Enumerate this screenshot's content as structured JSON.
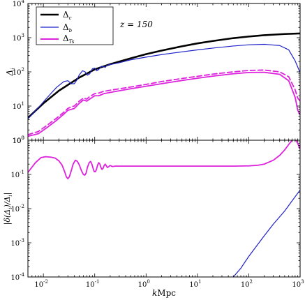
{
  "chart_data": [
    {
      "type": "line",
      "xscale": "log",
      "yscale": "log",
      "xlim": [
        0.005,
        1000
      ],
      "ylim": [
        1,
        10000
      ],
      "ylabel": "Δ_i",
      "yticks": [
        {
          "m": "10",
          "e": "0",
          "v": 1
        },
        {
          "m": "10",
          "e": "1",
          "v": 10
        },
        {
          "m": "10",
          "e": "2",
          "v": 100
        },
        {
          "m": "10",
          "e": "3",
          "v": 1000
        },
        {
          "m": "10",
          "e": "4",
          "v": 10000
        }
      ],
      "annotation": "z = 150",
      "legend": {
        "position": "top-left",
        "entries": [
          {
            "label": "Δ_c",
            "color": "#000000",
            "style": "solid-thick"
          },
          {
            "label": "Δ_b",
            "color": "#1f22c9",
            "style": "solid"
          },
          {
            "label": "Δ_Ts",
            "color": "#dd22dd",
            "style": "solid-thick"
          }
        ]
      },
      "series": [
        {
          "name": "Δ_c",
          "color": "#000000",
          "width": 2.6,
          "dash": "",
          "points": [
            [
              0.005,
              4.5
            ],
            [
              0.01,
              12
            ],
            [
              0.02,
              28
            ],
            [
              0.05,
              68
            ],
            [
              0.1,
              118
            ],
            [
              0.2,
              168
            ],
            [
              0.5,
              248
            ],
            [
              1,
              330
            ],
            [
              2,
              420
            ],
            [
              5,
              560
            ],
            [
              10,
              680
            ],
            [
              20,
              800
            ],
            [
              50,
              970
            ],
            [
              100,
              1080
            ],
            [
              200,
              1180
            ],
            [
              500,
              1280
            ],
            [
              1000,
              1330
            ]
          ]
        },
        {
          "name": "Δ_b",
          "color": "#1f22c9",
          "width": 1.2,
          "dash": "",
          "points": [
            [
              0.005,
              4.2
            ],
            [
              0.008,
              9
            ],
            [
              0.012,
              18
            ],
            [
              0.018,
              35
            ],
            [
              0.025,
              52
            ],
            [
              0.03,
              55
            ],
            [
              0.035,
              45
            ],
            [
              0.04,
              45
            ],
            [
              0.045,
              58
            ],
            [
              0.05,
              82
            ],
            [
              0.058,
              108
            ],
            [
              0.065,
              100
            ],
            [
              0.072,
              80
            ],
            [
              0.08,
              88
            ],
            [
              0.09,
              123
            ],
            [
              0.1,
              128
            ],
            [
              0.11,
              107
            ],
            [
              0.12,
              118
            ],
            [
              0.135,
              145
            ],
            [
              0.15,
              142
            ],
            [
              0.16,
              135
            ],
            [
              0.17,
              152
            ],
            [
              0.19,
              163
            ],
            [
              0.22,
              168
            ],
            [
              0.3,
              185
            ],
            [
              0.5,
              225
            ],
            [
              1,
              270
            ],
            [
              2,
              320
            ],
            [
              5,
              385
            ],
            [
              10,
              440
            ],
            [
              20,
              495
            ],
            [
              50,
              570
            ],
            [
              100,
              620
            ],
            [
              200,
              640
            ],
            [
              400,
              590
            ],
            [
              600,
              440
            ],
            [
              800,
              210
            ],
            [
              1000,
              95
            ]
          ]
        },
        {
          "name": "Δ_Ts",
          "color": "#dd22dd",
          "width": 1.8,
          "dash": "",
          "points": [
            [
              0.005,
              1.3
            ],
            [
              0.008,
              1.55
            ],
            [
              0.012,
              2.4
            ],
            [
              0.018,
              3.8
            ],
            [
              0.025,
              5.8
            ],
            [
              0.03,
              7.5
            ],
            [
              0.035,
              8
            ],
            [
              0.04,
              8.5
            ],
            [
              0.05,
              12
            ],
            [
              0.06,
              15
            ],
            [
              0.07,
              14
            ],
            [
              0.08,
              16
            ],
            [
              0.1,
              20
            ],
            [
              0.12,
              20
            ],
            [
              0.15,
              23
            ],
            [
              0.2,
              25
            ],
            [
              0.3,
              28
            ],
            [
              0.5,
              32
            ],
            [
              1,
              38
            ],
            [
              2,
              45
            ],
            [
              5,
              56
            ],
            [
              10,
              65
            ],
            [
              20,
              75
            ],
            [
              50,
              88
            ],
            [
              100,
              96
            ],
            [
              200,
              97
            ],
            [
              400,
              85
            ],
            [
              600,
              55
            ],
            [
              800,
              18
            ],
            [
              900,
              7.5
            ],
            [
              1000,
              5.5
            ]
          ]
        },
        {
          "name": "Δ_Ts (dashed)",
          "color": "#dd22dd",
          "width": 1.8,
          "dash": "7,4",
          "points": [
            [
              0.005,
              1.45
            ],
            [
              0.008,
              1.8
            ],
            [
              0.012,
              2.8
            ],
            [
              0.018,
              4.4
            ],
            [
              0.025,
              6.6
            ],
            [
              0.03,
              8.5
            ],
            [
              0.035,
              9.5
            ],
            [
              0.04,
              10
            ],
            [
              0.05,
              14
            ],
            [
              0.06,
              17
            ],
            [
              0.07,
              16
            ],
            [
              0.08,
              19
            ],
            [
              0.1,
              23
            ],
            [
              0.12,
              24
            ],
            [
              0.15,
              27
            ],
            [
              0.2,
              29
            ],
            [
              0.3,
              32
            ],
            [
              0.5,
              36
            ],
            [
              1,
              43
            ],
            [
              2,
              52
            ],
            [
              5,
              64
            ],
            [
              10,
              74
            ],
            [
              20,
              86
            ],
            [
              50,
              100
            ],
            [
              100,
              110
            ],
            [
              200,
              113
            ],
            [
              400,
              100
            ],
            [
              600,
              72
            ],
            [
              800,
              30
            ],
            [
              900,
              17
            ],
            [
              1000,
              14
            ]
          ]
        }
      ]
    },
    {
      "type": "line",
      "xscale": "log",
      "yscale": "log",
      "xlim": [
        0.005,
        1000
      ],
      "ylim": [
        0.0001,
        1
      ],
      "xlabel": "kMpc",
      "ylabel": "|δ(Δ_i)/Δ_i|",
      "xticks": [
        {
          "m": "10",
          "e": "-2",
          "v": 0.01
        },
        {
          "m": "10",
          "e": "-1",
          "v": 0.1
        },
        {
          "m": "10",
          "e": "0",
          "v": 1
        },
        {
          "m": "10",
          "e": "1",
          "v": 10
        },
        {
          "m": "10",
          "e": "2",
          "v": 100
        },
        {
          "m": "10",
          "e": "3",
          "v": 1000
        }
      ],
      "yticks": [
        {
          "m": "10",
          "e": "-4",
          "v": 0.0001
        },
        {
          "m": "10",
          "e": "-3",
          "v": 0.001
        },
        {
          "m": "10",
          "e": "-2",
          "v": 0.01
        },
        {
          "m": "10",
          "e": "-1",
          "v": 0.1
        },
        {
          "m": "10",
          "e": "0",
          "v": 1
        }
      ],
      "series": [
        {
          "name": "Δ_Ts",
          "color": "#dd22dd",
          "width": 1.8,
          "dash": "",
          "points": [
            [
              0.005,
              0.115
            ],
            [
              0.007,
              0.22
            ],
            [
              0.009,
              0.31
            ],
            [
              0.011,
              0.33
            ],
            [
              0.014,
              0.32
            ],
            [
              0.017,
              0.3
            ],
            [
              0.02,
              0.25
            ],
            [
              0.023,
              0.19
            ],
            [
              0.026,
              0.12
            ],
            [
              0.028,
              0.085
            ],
            [
              0.03,
              0.075
            ],
            [
              0.032,
              0.085
            ],
            [
              0.035,
              0.13
            ],
            [
              0.038,
              0.2
            ],
            [
              0.042,
              0.26
            ],
            [
              0.046,
              0.24
            ],
            [
              0.05,
              0.19
            ],
            [
              0.055,
              0.13
            ],
            [
              0.06,
              0.1
            ],
            [
              0.064,
              0.095
            ],
            [
              0.068,
              0.11
            ],
            [
              0.072,
              0.16
            ],
            [
              0.078,
              0.22
            ],
            [
              0.083,
              0.24
            ],
            [
              0.088,
              0.2
            ],
            [
              0.093,
              0.15
            ],
            [
              0.098,
              0.12
            ],
            [
              0.103,
              0.12
            ],
            [
              0.108,
              0.14
            ],
            [
              0.114,
              0.19
            ],
            [
              0.12,
              0.22
            ],
            [
              0.126,
              0.2
            ],
            [
              0.132,
              0.16
            ],
            [
              0.138,
              0.14
            ],
            [
              0.145,
              0.15
            ],
            [
              0.152,
              0.18
            ],
            [
              0.16,
              0.2
            ],
            [
              0.168,
              0.18
            ],
            [
              0.176,
              0.16
            ],
            [
              0.185,
              0.165
            ],
            [
              0.195,
              0.18
            ],
            [
              0.205,
              0.18
            ],
            [
              0.22,
              0.17
            ],
            [
              0.25,
              0.175
            ],
            [
              0.3,
              0.175
            ],
            [
              1,
              0.175
            ],
            [
              10,
              0.175
            ],
            [
              50,
              0.175
            ],
            [
              100,
              0.178
            ],
            [
              150,
              0.185
            ],
            [
              200,
              0.2
            ],
            [
              300,
              0.26
            ],
            [
              400,
              0.36
            ],
            [
              500,
              0.52
            ],
            [
              600,
              0.75
            ],
            [
              700,
              1.0
            ],
            [
              800,
              1.1
            ],
            [
              900,
              0.8
            ],
            [
              1000,
              0.55
            ]
          ]
        },
        {
          "name": "Δ_b",
          "color": "#1f22c9",
          "width": 1.2,
          "dash": "",
          "points": [
            [
              50,
              0.0001
            ],
            [
              70,
              0.00018
            ],
            [
              100,
              0.0004
            ],
            [
              150,
              0.0009
            ],
            [
              200,
              0.0016
            ],
            [
              300,
              0.0035
            ],
            [
              500,
              0.0085
            ],
            [
              700,
              0.017
            ],
            [
              1000,
              0.035
            ]
          ]
        }
      ]
    }
  ]
}
